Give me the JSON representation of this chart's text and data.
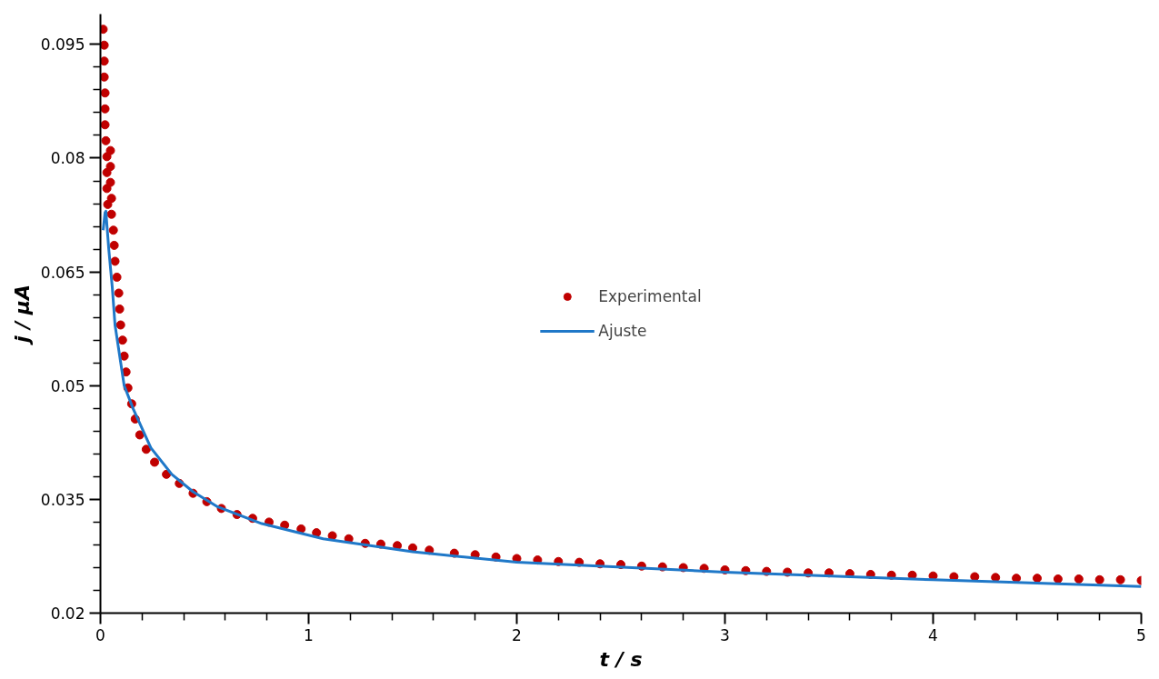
{
  "chart_data": {
    "type": "scatter",
    "xlabel": "t / s",
    "ylabel": "j / μA",
    "xlim": [
      0,
      5
    ],
    "ylim": [
      0.02,
      0.099
    ],
    "xticks": [
      0,
      1,
      2,
      3,
      4,
      5
    ],
    "yticks": [
      0.02,
      0.035,
      0.05,
      0.065,
      0.08,
      0.095
    ],
    "grid": false,
    "legend": "center",
    "series": [
      {
        "name": "Experimental",
        "marker": "circle",
        "color": "#c00000",
        "x": [
          0.013,
          0.018,
          0.018,
          0.018,
          0.022,
          0.022,
          0.022,
          0.026,
          0.048,
          0.031,
          0.048,
          0.031,
          0.048,
          0.031,
          0.053,
          0.035,
          0.053,
          0.062,
          0.066,
          0.07,
          0.079,
          0.088,
          0.092,
          0.097,
          0.106,
          0.114,
          0.123,
          0.132,
          0.15,
          0.167,
          0.189,
          0.22,
          0.26,
          0.317,
          0.379,
          0.445,
          0.511,
          0.581,
          0.656,
          0.731,
          0.81,
          0.885,
          0.964,
          1.038,
          1.114,
          1.193,
          1.272,
          1.347,
          1.426,
          1.5,
          1.58,
          1.7,
          1.8,
          1.9,
          2.0,
          2.1,
          2.2,
          2.3,
          2.4,
          2.5,
          2.6,
          2.7,
          2.8,
          2.9,
          3.0,
          3.1,
          3.2,
          3.3,
          3.4,
          3.5,
          3.6,
          3.7,
          3.8,
          3.9,
          4.0,
          4.1,
          4.2,
          4.3,
          4.4,
          4.5,
          4.6,
          4.7,
          4.8,
          4.9,
          5.0
        ],
        "values": [
          0.097,
          0.0949,
          0.0928,
          0.0907,
          0.0886,
          0.0865,
          0.0844,
          0.0823,
          0.081,
          0.0802,
          0.0789,
          0.0781,
          0.0768,
          0.076,
          0.0747,
          0.0739,
          0.0726,
          0.0705,
          0.0685,
          0.0664,
          0.0643,
          0.0622,
          0.0601,
          0.058,
          0.056,
          0.0539,
          0.0518,
          0.0497,
          0.0476,
          0.0456,
          0.0435,
          0.0416,
          0.0399,
          0.0383,
          0.0371,
          0.0358,
          0.0347,
          0.0338,
          0.033,
          0.0325,
          0.032,
          0.0316,
          0.0311,
          0.0306,
          0.0302,
          0.0298,
          0.0292,
          0.0291,
          0.0289,
          0.0286,
          0.0283,
          0.0279,
          0.0277,
          0.0274,
          0.0272,
          0.027,
          0.0268,
          0.0267,
          0.0265,
          0.0264,
          0.0262,
          0.0261,
          0.026,
          0.0259,
          0.0257,
          0.0256,
          0.0255,
          0.0254,
          0.0253,
          0.0253,
          0.0252,
          0.0251,
          0.025,
          0.025,
          0.0249,
          0.0248,
          0.0248,
          0.0247,
          0.0246,
          0.0246,
          0.0245,
          0.0245,
          0.0244,
          0.0244,
          0.0243
        ]
      },
      {
        "name": "Ajuste",
        "type": "line",
        "color": "#1f78c8",
        "line_style": "solid",
        "x": [
          0.013,
          0.022,
          0.026,
          0.04,
          0.057,
          0.07,
          0.114,
          0.158,
          0.242,
          0.343,
          0.445,
          0.564,
          0.775,
          1.07,
          1.5,
          2.0,
          3.0,
          4.0,
          5.0
        ],
        "values": [
          0.0705,
          0.0728,
          0.073,
          0.068,
          0.0629,
          0.058,
          0.05,
          0.0469,
          0.0418,
          0.0383,
          0.036,
          0.034,
          0.0318,
          0.0298,
          0.0281,
          0.0267,
          0.0254,
          0.0244,
          0.0235
        ]
      }
    ]
  }
}
